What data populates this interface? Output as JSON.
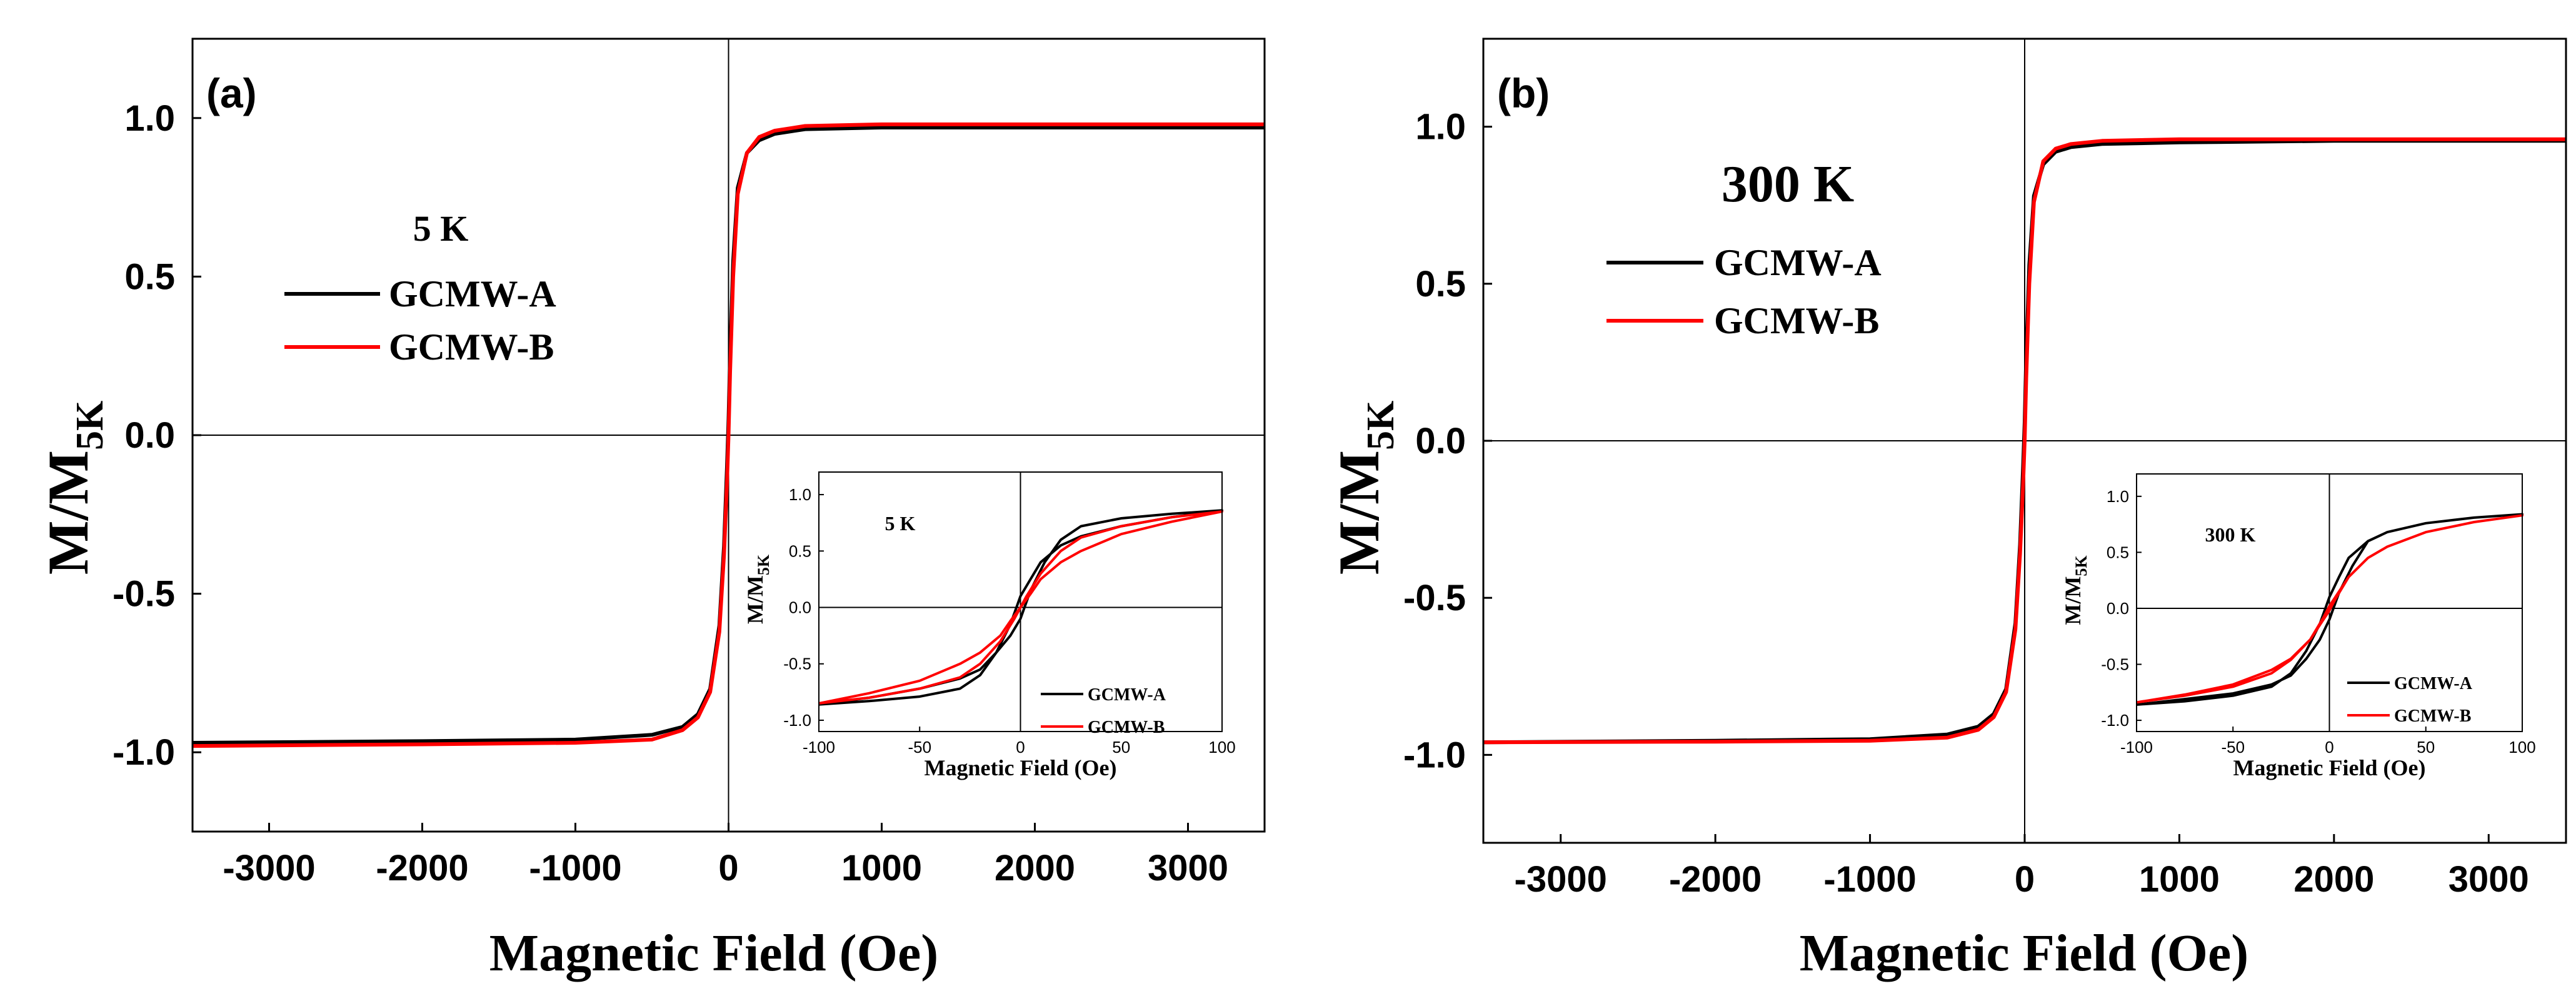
{
  "chart_data": [
    {
      "type": "line",
      "panel_label": "(a)",
      "temperature_label": "5 K",
      "xlabel": "Magnetic Field (Oe)",
      "ylabel_main": "M/M",
      "ylabel_sub": "5K",
      "xlim": [
        -3500,
        3500
      ],
      "ylim": [
        -1.25,
        1.25
      ],
      "xticks": [
        -3000,
        -2000,
        -1000,
        0,
        1000,
        2000,
        3000
      ],
      "xtick_labels": [
        "-3000",
        "-2000",
        "-1000",
        "0",
        "1000",
        "2000",
        "3000"
      ],
      "yticks": [
        -1.0,
        -0.5,
        0.0,
        0.5,
        1.0
      ],
      "ytick_labels": [
        "-1.0",
        "-0.5",
        "0.0",
        "0.5",
        "1.0"
      ],
      "legend": "upper-left",
      "series": [
        {
          "name": "GCMW-A",
          "color": "#000000",
          "x": [
            -3500,
            -2000,
            -1000,
            -500,
            -300,
            -200,
            -120,
            -60,
            -30,
            -10,
            0,
            10,
            30,
            60,
            120,
            200,
            300,
            500,
            1000,
            2000,
            3500
          ],
          "y": [
            -0.97,
            -0.965,
            -0.96,
            -0.945,
            -0.92,
            -0.88,
            -0.8,
            -0.6,
            -0.35,
            -0.1,
            0.05,
            0.25,
            0.55,
            0.78,
            0.89,
            0.93,
            0.95,
            0.965,
            0.97,
            0.97,
            0.97
          ]
        },
        {
          "name": "GCMW-B",
          "color": "#ff0000",
          "x": [
            -3500,
            -2000,
            -1000,
            -500,
            -300,
            -200,
            -120,
            -60,
            -30,
            -10,
            0,
            10,
            30,
            60,
            120,
            200,
            300,
            500,
            1000,
            2000,
            3500
          ],
          "y": [
            -0.98,
            -0.975,
            -0.97,
            -0.96,
            -0.93,
            -0.89,
            -0.81,
            -0.62,
            -0.38,
            -0.15,
            0.0,
            0.2,
            0.5,
            0.76,
            0.89,
            0.94,
            0.96,
            0.975,
            0.98,
            0.98,
            0.98
          ]
        }
      ],
      "inset": {
        "temperature_label": "5 K",
        "xlabel": "Magnetic Field (Oe)",
        "ylabel_main": "M/M",
        "ylabel_sub": "5K",
        "xlim": [
          -100,
          100
        ],
        "ylim": [
          -1.1,
          1.2
        ],
        "xticks": [
          -100,
          -50,
          0,
          50,
          100
        ],
        "xtick_labels": [
          "-100",
          "-50",
          "0",
          "50",
          "100"
        ],
        "yticks": [
          -1.0,
          -0.5,
          0.0,
          0.5,
          1.0
        ],
        "ytick_labels": [
          "-1.0",
          "-0.5",
          "0.0",
          "0.5",
          "1.0"
        ],
        "legend": "lower-right",
        "series": [
          {
            "name": "GCMW-A",
            "color": "#000000",
            "x": [
              -100,
              -75,
              -50,
              -30,
              -20,
              -12,
              -5,
              0,
              5,
              10,
              20,
              30,
              50,
              75,
              100,
              75,
              50,
              30,
              20,
              12,
              5,
              0,
              -5,
              -12,
              -20,
              -30,
              -50,
              -75,
              -100
            ],
            "y": [
              -0.86,
              -0.83,
              -0.79,
              -0.72,
              -0.6,
              -0.4,
              -0.15,
              0.1,
              0.25,
              0.4,
              0.55,
              0.63,
              0.72,
              0.8,
              0.86,
              0.83,
              0.79,
              0.72,
              0.6,
              0.4,
              0.15,
              -0.1,
              -0.25,
              -0.4,
              -0.55,
              -0.63,
              -0.72,
              -0.8,
              -0.86
            ]
          },
          {
            "name": "GCMW-B",
            "color": "#ff0000",
            "x": [
              -100,
              -75,
              -50,
              -30,
              -20,
              -10,
              -3,
              0,
              5,
              10,
              20,
              30,
              50,
              75,
              100,
              75,
              50,
              30,
              20,
              10,
              3,
              0,
              -5,
              -10,
              -20,
              -30,
              -50,
              -75,
              -100
            ],
            "y": [
              -0.85,
              -0.8,
              -0.72,
              -0.62,
              -0.5,
              -0.3,
              -0.1,
              0.0,
              0.12,
              0.25,
              0.4,
              0.5,
              0.65,
              0.76,
              0.85,
              0.8,
              0.72,
              0.62,
              0.5,
              0.3,
              0.1,
              0.0,
              -0.12,
              -0.25,
              -0.4,
              -0.5,
              -0.65,
              -0.76,
              -0.85
            ]
          }
        ]
      }
    },
    {
      "type": "line",
      "panel_label": "(b)",
      "temperature_label": "300 K",
      "xlabel": "Magnetic Field (Oe)",
      "ylabel_main": "M/M",
      "ylabel_sub": "5K",
      "xlim": [
        -3500,
        3500
      ],
      "ylim": [
        -1.28,
        1.28
      ],
      "xticks": [
        -3000,
        -2000,
        -1000,
        0,
        1000,
        2000,
        3000
      ],
      "xtick_labels": [
        "-3000",
        "-2000",
        "-1000",
        "0",
        "1000",
        "2000",
        "3000"
      ],
      "yticks": [
        -1.0,
        -0.5,
        0.0,
        0.5,
        1.0
      ],
      "ytick_labels": [
        "-1.0",
        "-0.5",
        "0.0",
        "0.5",
        "1.0"
      ],
      "legend": "upper-left",
      "series": [
        {
          "name": "GCMW-A",
          "color": "#000000",
          "x": [
            -3500,
            -2000,
            -1000,
            -500,
            -300,
            -200,
            -120,
            -60,
            -30,
            -10,
            0,
            10,
            30,
            60,
            120,
            200,
            300,
            500,
            1000,
            2000,
            3500
          ],
          "y": [
            -0.96,
            -0.955,
            -0.95,
            -0.935,
            -0.91,
            -0.87,
            -0.79,
            -0.58,
            -0.33,
            -0.08,
            0.06,
            0.27,
            0.56,
            0.78,
            0.88,
            0.92,
            0.935,
            0.945,
            0.95,
            0.955,
            0.955
          ]
        },
        {
          "name": "GCMW-B",
          "color": "#ff0000",
          "x": [
            -3500,
            -2000,
            -1000,
            -500,
            -300,
            -200,
            -120,
            -60,
            -30,
            -10,
            0,
            10,
            30,
            60,
            120,
            200,
            300,
            500,
            1000,
            2000,
            3500
          ],
          "y": [
            -0.96,
            -0.958,
            -0.955,
            -0.945,
            -0.92,
            -0.88,
            -0.8,
            -0.6,
            -0.36,
            -0.14,
            0.0,
            0.2,
            0.5,
            0.76,
            0.89,
            0.93,
            0.945,
            0.955,
            0.96,
            0.96,
            0.96
          ]
        }
      ],
      "inset": {
        "temperature_label": "300 K",
        "xlabel": "Magnetic Field (Oe)",
        "ylabel_main": "M/M",
        "ylabel_sub": "5K",
        "xlim": [
          -100,
          100
        ],
        "ylim": [
          -1.1,
          1.2
        ],
        "xticks": [
          -100,
          -50,
          0,
          50,
          100
        ],
        "xtick_labels": [
          "-100",
          "-50",
          "0",
          "50",
          "100"
        ],
        "yticks": [
          -1.0,
          -0.5,
          0.0,
          0.5,
          1.0
        ],
        "ytick_labels": [
          "-1.0",
          "-0.5",
          "0.0",
          "0.5",
          "1.0"
        ],
        "legend": "lower-right",
        "series": [
          {
            "name": "GCMW-A",
            "color": "#000000",
            "x": [
              -100,
              -75,
              -50,
              -30,
              -20,
              -12,
              -5,
              0,
              5,
              10,
              20,
              30,
              50,
              75,
              100,
              75,
              50,
              30,
              20,
              12,
              5,
              0,
              -5,
              -12,
              -20,
              -30,
              -50,
              -75,
              -100
            ],
            "y": [
              -0.86,
              -0.83,
              -0.78,
              -0.7,
              -0.58,
              -0.38,
              -0.14,
              0.1,
              0.28,
              0.45,
              0.6,
              0.68,
              0.76,
              0.81,
              0.84,
              0.81,
              0.76,
              0.68,
              0.6,
              0.38,
              0.14,
              -0.1,
              -0.28,
              -0.45,
              -0.6,
              -0.68,
              -0.76,
              -0.81,
              -0.86
            ]
          },
          {
            "name": "GCMW-B",
            "color": "#ff0000",
            "x": [
              -100,
              -75,
              -50,
              -30,
              -20,
              -10,
              -3,
              0,
              5,
              10,
              20,
              30,
              50,
              75,
              100,
              75,
              50,
              30,
              20,
              10,
              3,
              0,
              -5,
              -10,
              -20,
              -30,
              -50,
              -75,
              -100
            ],
            "y": [
              -0.84,
              -0.78,
              -0.7,
              -0.58,
              -0.46,
              -0.28,
              -0.08,
              0.02,
              0.15,
              0.28,
              0.45,
              0.55,
              0.68,
              0.77,
              0.83,
              0.77,
              0.68,
              0.55,
              0.45,
              0.28,
              0.08,
              -0.02,
              -0.15,
              -0.28,
              -0.45,
              -0.55,
              -0.68,
              -0.77,
              -0.84
            ]
          }
        ]
      }
    }
  ]
}
